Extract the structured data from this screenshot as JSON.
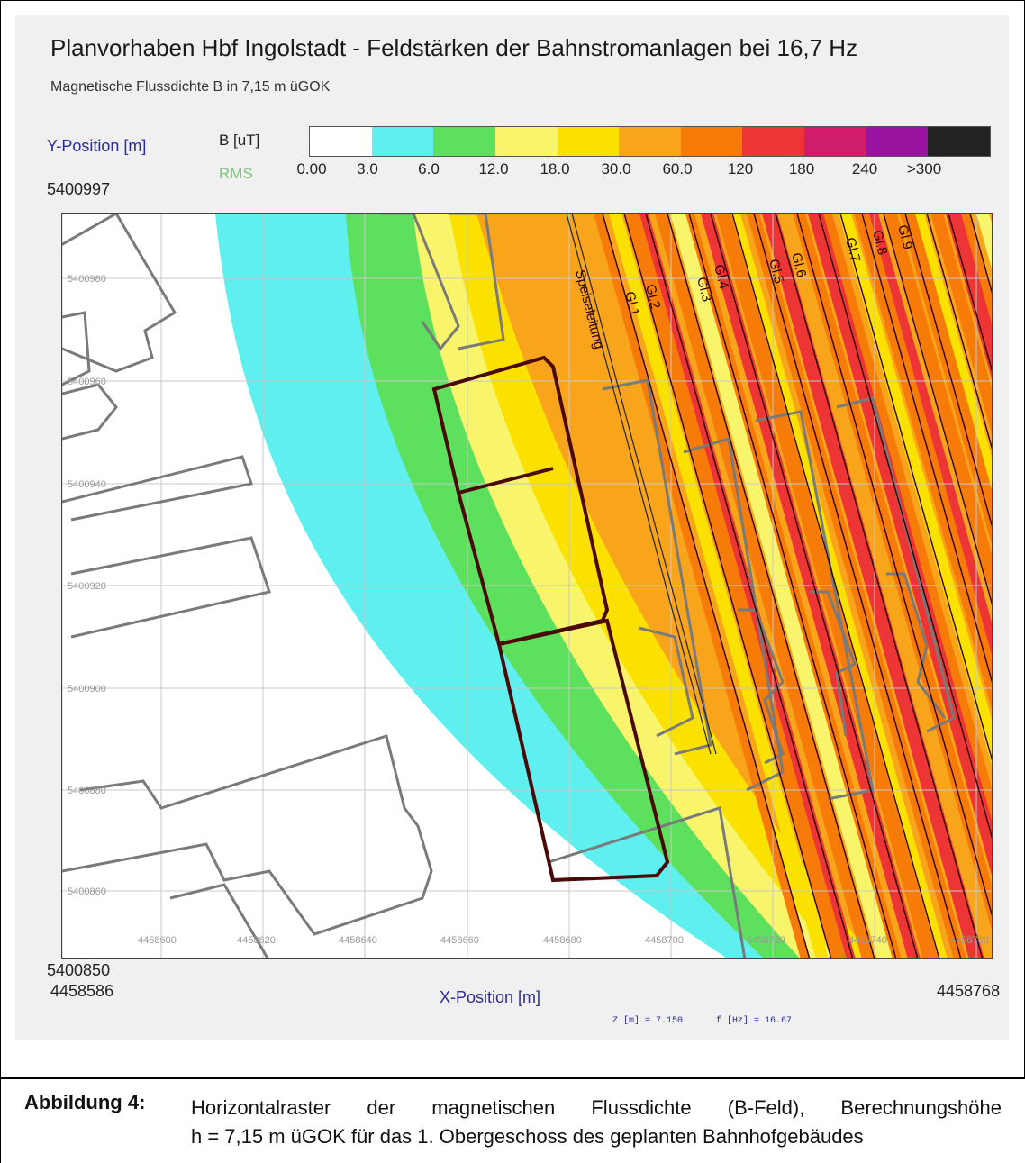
{
  "title": "Planvorhaben Hbf Ingolstadt - Feldstärken der Bahnstromanlagen bei 16,7 Hz",
  "subtitle": "Magnetische Flussdichte B in 7,15 m üGOK",
  "legend": {
    "quantity_label": "B [uT]",
    "rms_label": "RMS",
    "colors": [
      "#ffffff",
      "#5fefef",
      "#5de05d",
      "#f8f56c",
      "#fbe100",
      "#f8a51b",
      "#f77b09",
      "#ed3535",
      "#d11b6b",
      "#9a12a0",
      "#222222"
    ],
    "ticks": [
      "0.00",
      "3.0",
      "6.0",
      "12.0",
      "18.0",
      "30.0",
      "60.0",
      "120",
      "180",
      "240",
      ">300"
    ]
  },
  "axes": {
    "y_label": "Y-Position [m]",
    "x_label": "X-Position [m]",
    "y_max": "5400997",
    "y_min": "5400850",
    "x_min": "4458586",
    "x_max": "4458768",
    "y_grid_labels": [
      "5400980",
      "5400960",
      "5400940",
      "5400920",
      "5400900",
      "5400880",
      "5400860"
    ],
    "x_grid_labels": [
      "4458600",
      "4458620",
      "4458640",
      "4458660",
      "4458680",
      "4458700",
      "4458720",
      "4458740",
      "4458760"
    ]
  },
  "map_labels": {
    "feeder": "Speiseleitung",
    "tracks": [
      "Gl.1",
      "Gl.2",
      "Gl.3",
      "Gl.4",
      "Gl.5",
      "Gl.6",
      "Gl.7",
      "Gl.8",
      "Gl.9"
    ]
  },
  "params": {
    "z": "Z [m] = 7.150",
    "f": "f [Hz] = 16.67"
  },
  "caption": {
    "label": "Abbildung 4:",
    "line1": "Horizontalraster der magnetischen Flussdichte (B-Feld), Berechnungshöhe",
    "line2": "h = 7,15 m üGOK für das 1. Obergeschoss des geplanten Bahnhofgebäudes"
  }
}
